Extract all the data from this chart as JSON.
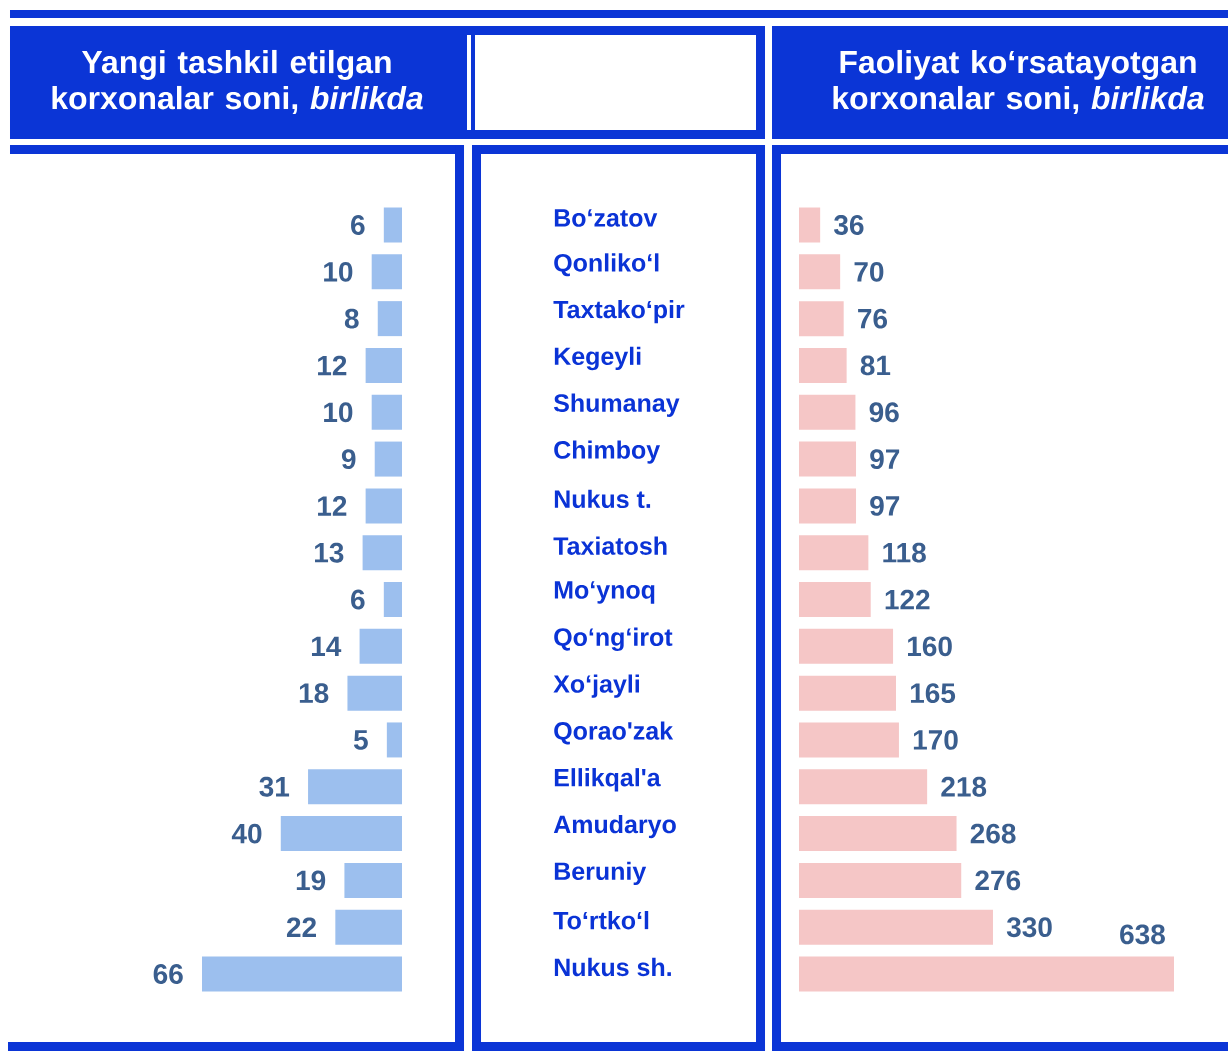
{
  "chart_data": [
    {
      "type": "bar",
      "orientation": "horizontal",
      "title": "Yangi tashkil etilgan korxonalar soni, *birlikda*",
      "categories": [
        "Bo‘zatov",
        "Qonliko‘l",
        "Taxtako‘pir",
        "Kegeyli",
        "Shumanay",
        "Chimboy",
        "Nukus t.",
        "Taxiatosh",
        "Mo‘ynoq",
        "Qo‘ng‘irot",
        "Xo‘jayli",
        "Qorao'zak",
        "Ellikqal'a",
        "Amudaryo",
        "Beruniy",
        "To‘rtko‘l",
        "Nukus sh."
      ],
      "values": [
        6,
        10,
        8,
        12,
        10,
        9,
        12,
        13,
        6,
        14,
        18,
        5,
        31,
        40,
        19,
        22,
        66
      ],
      "color": "#9cbfee",
      "data_labels": true,
      "tick_labels": "y"
    },
    {
      "type": "bar",
      "orientation": "horizontal",
      "title": "Faoliyat ko‘rsatayotgan korxonalar soni, *birlikda*",
      "categories": [
        null,
        null,
        null,
        null,
        null,
        null,
        null,
        null,
        null,
        null,
        null,
        null,
        null,
        null,
        null,
        null,
        null
      ],
      "values": [
        36,
        70,
        76,
        81,
        96,
        97,
        97,
        118,
        122,
        160,
        165,
        170,
        218,
        268,
        276,
        330,
        638
      ],
      "color": "#f5c6c6",
      "data_labels": true
    }
  ]
}
